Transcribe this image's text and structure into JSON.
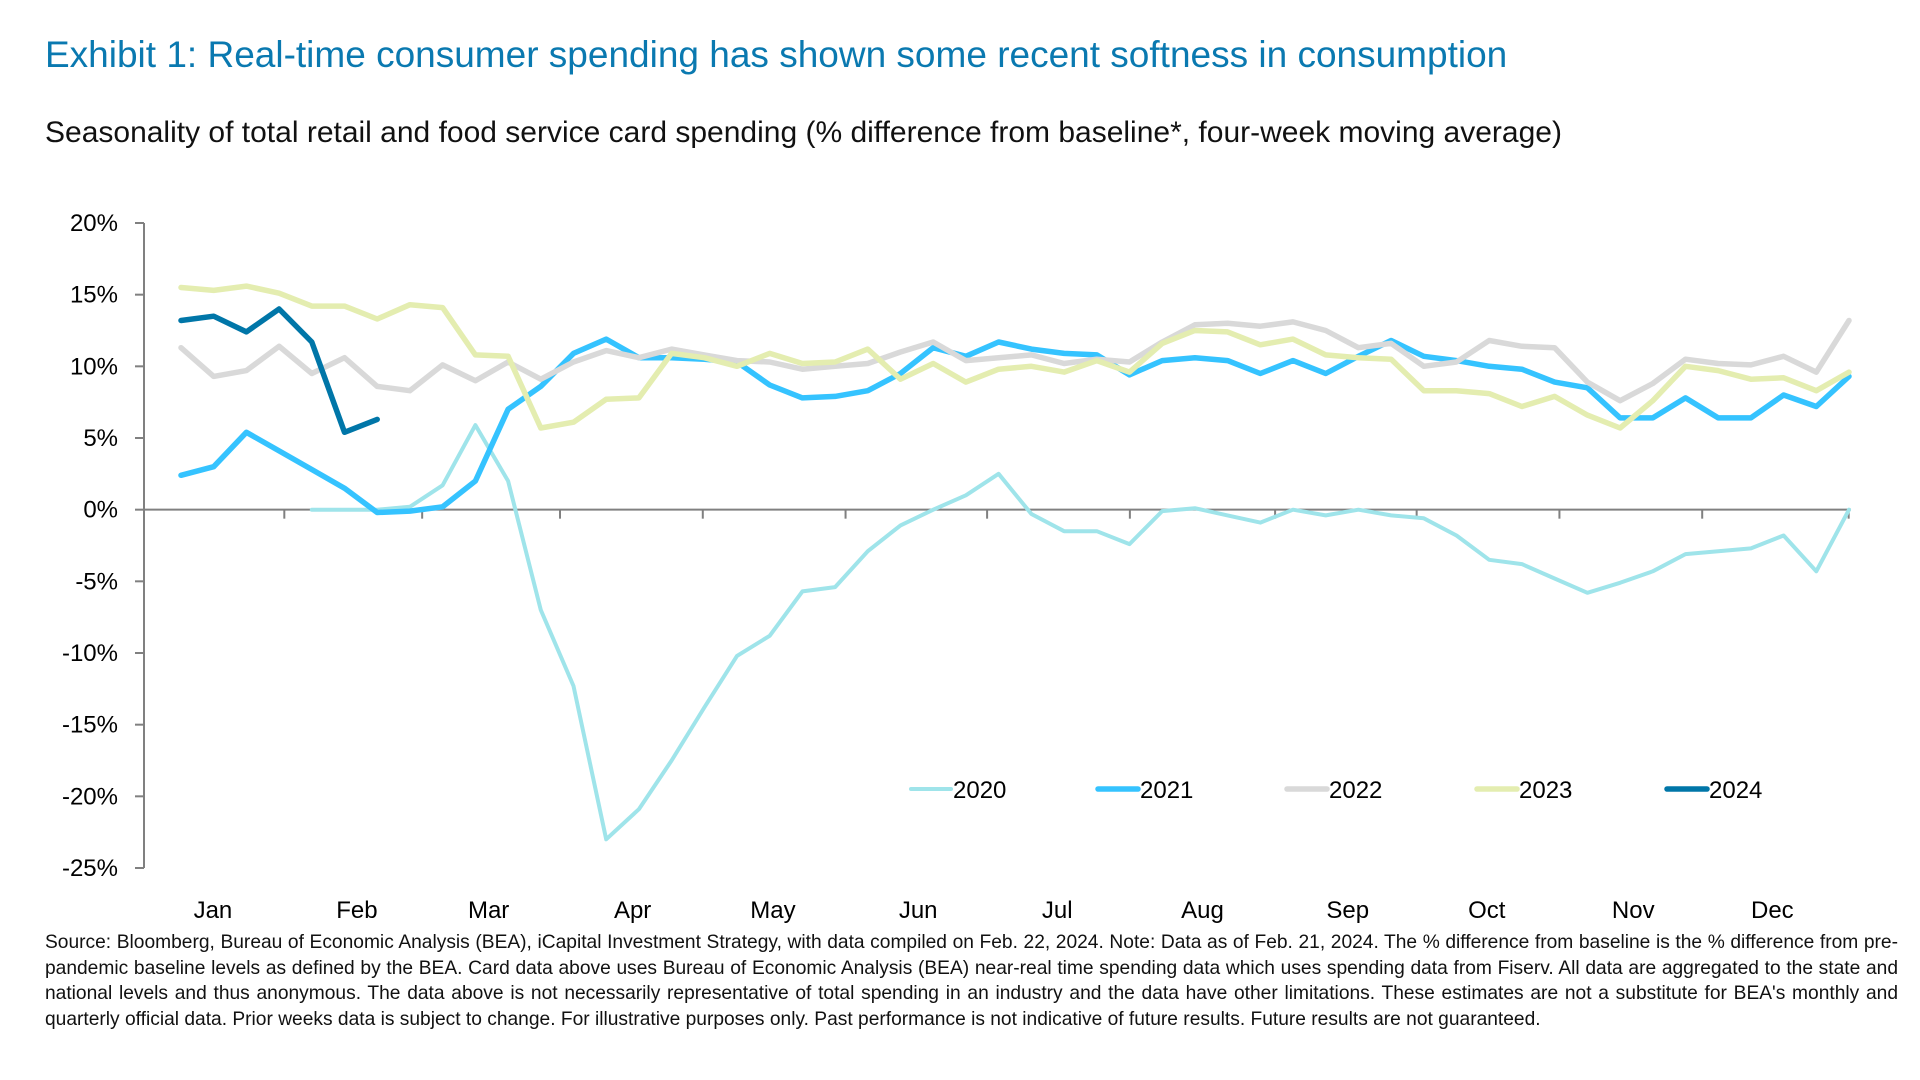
{
  "title": "Exhibit 1: Real-time consumer spending has shown some recent softness in consumption",
  "subtitle": "Seasonality of total retail and food service card spending (% difference from baseline*, four-week moving average)",
  "footnote": "Source: Bloomberg, Bureau of Economic Analysis (BEA), iCapital Investment Strategy, with data compiled on Feb. 22, 2024. Note: Data as of Feb. 21, 2024. The % difference from baseline is the % difference from pre-pandemic baseline levels as defined by the BEA.  Card data above uses Bureau of Economic Analysis (BEA) near-real time spending data which uses spending data from Fiserv. All data are aggregated to the state and national levels and thus anonymous. The data above is not necessarily representative of total spending in an industry and the data have other limitations. These estimates are not a substitute for BEA's monthly and quarterly official data. Prior weeks data is subject to change. For illustrative purposes only. Past performance is not indicative of future results. Future results are not guaranteed.",
  "chart_data": {
    "type": "line",
    "title": "Exhibit 1: Real-time consumer spending has shown some recent softness in consumption",
    "subtitle": "Seasonality of total retail and food service card spending (% difference from baseline*, four-week moving average)",
    "xlabel": "",
    "ylabel": "",
    "x_unit": "week of year (1-52)",
    "month_labels": [
      "Jan",
      "Feb",
      "Mar",
      "Apr",
      "May",
      "Jun",
      "Jul",
      "Aug",
      "Sep",
      "Oct",
      "Nov",
      "Dec"
    ],
    "y_ticks": [
      20,
      15,
      10,
      5,
      0,
      -5,
      -10,
      -15,
      -20,
      -25
    ],
    "y_tick_labels": [
      "20%",
      "15%",
      "10%",
      "5%",
      "0%",
      "-5%",
      "-10%",
      "-15%",
      "-20%",
      "-25%"
    ],
    "ylim": [
      -25,
      20
    ],
    "grid": false,
    "legend_position": "bottom-right",
    "series": [
      {
        "name": "2020",
        "color": "#9fe4ea",
        "values": [
          null,
          null,
          null,
          null,
          0,
          0,
          0,
          0.2,
          1.7,
          5.9,
          2.0,
          -7.0,
          -12.3,
          -23.0,
          -20.9,
          -17.5,
          -13.8,
          -10.2,
          -8.8,
          -5.7,
          -5.4,
          -2.9,
          -1.1,
          0,
          1.0,
          2.5,
          -0.3,
          -1.5,
          -1.5,
          -2.4,
          -0.1,
          0.1,
          -0.4,
          -0.9,
          0.0,
          -0.4,
          0.0,
          -0.4,
          -0.6,
          -1.8,
          -3.5,
          -3.8,
          -4.8,
          -5.8,
          -5.1,
          -4.3,
          -3.1,
          -2.9,
          -2.7,
          -1.8,
          -4.3,
          0
        ]
      },
      {
        "name": "2021",
        "color": "#35c3ff",
        "values": [
          2.4,
          3.0,
          5.4,
          4.1,
          2.8,
          1.5,
          -0.2,
          -0.1,
          0.2,
          2.0,
          7.0,
          8.6,
          10.9,
          11.9,
          10.6,
          10.6,
          10.5,
          10.3,
          8.7,
          7.8,
          7.9,
          8.3,
          9.5,
          11.3,
          10.7,
          11.7,
          11.2,
          10.9,
          10.8,
          9.4,
          10.4,
          10.6,
          10.4,
          9.5,
          10.4,
          9.5,
          10.7,
          11.8,
          10.7,
          10.4,
          10.0,
          9.8,
          8.9,
          8.5,
          6.4,
          6.4,
          7.8,
          6.4,
          6.4,
          8.0,
          7.2,
          9.3
        ]
      },
      {
        "name": "2022",
        "color": "#d9d9d9",
        "values": [
          11.3,
          9.3,
          9.7,
          11.4,
          9.5,
          10.6,
          8.6,
          8.3,
          10.1,
          9.0,
          10.3,
          9.1,
          10.3,
          11.1,
          10.6,
          11.2,
          10.8,
          10.4,
          10.3,
          9.8,
          10.0,
          10.2,
          11.0,
          11.7,
          10.4,
          10.6,
          10.8,
          10.2,
          10.5,
          10.3,
          11.7,
          12.9,
          13.0,
          12.8,
          13.1,
          12.5,
          11.3,
          11.6,
          10.0,
          10.3,
          11.8,
          11.4,
          11.3,
          8.9,
          7.6,
          8.8,
          10.5,
          10.2,
          10.1,
          10.7,
          9.6,
          13.2
        ]
      },
      {
        "name": "2023",
        "color": "#e4edb0",
        "values": [
          15.5,
          15.3,
          15.6,
          15.1,
          14.2,
          14.2,
          13.3,
          14.3,
          14.1,
          10.8,
          10.7,
          5.7,
          6.1,
          7.7,
          7.8,
          10.9,
          10.6,
          10.0,
          10.9,
          10.2,
          10.3,
          11.2,
          9.1,
          10.2,
          8.9,
          9.8,
          10.0,
          9.6,
          10.4,
          9.6,
          11.6,
          12.5,
          12.4,
          11.5,
          11.9,
          10.8,
          10.6,
          10.5,
          8.3,
          8.3,
          8.1,
          7.2,
          7.9,
          6.6,
          5.7,
          7.6,
          10.0,
          9.7,
          9.1,
          9.2,
          8.3,
          9.6
        ]
      },
      {
        "name": "2024",
        "color": "#0076a8",
        "values": [
          13.2,
          13.5,
          12.4,
          14.0,
          11.7,
          5.4,
          6.3
        ]
      }
    ]
  }
}
